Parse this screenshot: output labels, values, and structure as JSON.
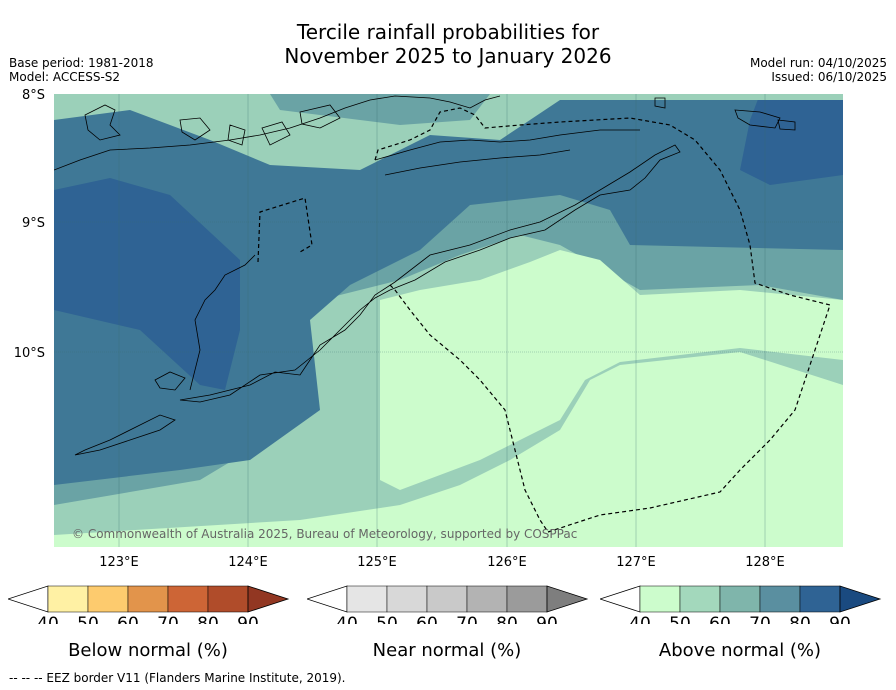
{
  "title_line1": "Tercile rainfall probabilities for",
  "title_line2": "November 2025 to January 2026",
  "base_period": "Base period: 1981-2018",
  "model": "Model: ACCESS-S2",
  "model_run": "Model run: 04/10/2025",
  "issued": "Issued: 06/10/2025",
  "lat_labels": [
    "8°S",
    "9°S",
    "10°S"
  ],
  "lon_labels": [
    "123°E",
    "124°E",
    "125°E",
    "126°E",
    "127°E",
    "128°E"
  ],
  "copyright": "© Commonwealth of Australia 2025, Bureau of Meteorology, supported by COSPPac",
  "colorbars": [
    {
      "name": "below",
      "label": "Below normal (%)",
      "ticks": [
        "40",
        "50",
        "60",
        "70",
        "80",
        "90"
      ],
      "colors": [
        "#fff1a4",
        "#fdcb6e",
        "#e2944b",
        "#cd6536",
        "#b04c2a",
        "#923722"
      ]
    },
    {
      "name": "near",
      "label": "Near normal (%)",
      "ticks": [
        "40",
        "50",
        "60",
        "70",
        "80",
        "90"
      ],
      "colors": [
        "#e5e5e5",
        "#d8d8d8",
        "#c9c9c9",
        "#b3b3b3",
        "#9b9b9b",
        "#7e7e7e"
      ]
    },
    {
      "name": "above",
      "label": "Above normal (%)",
      "ticks": [
        "40",
        "50",
        "60",
        "70",
        "80",
        "90"
      ],
      "colors": [
        "#ccfccc",
        "#a3d8bc",
        "#7fb5ab",
        "#5a8fa0",
        "#2f6394",
        "#1a4a80"
      ]
    }
  ],
  "footnote": "-- -- -- EEZ border V11 (Flanders Marine Institute, 2019)."
}
